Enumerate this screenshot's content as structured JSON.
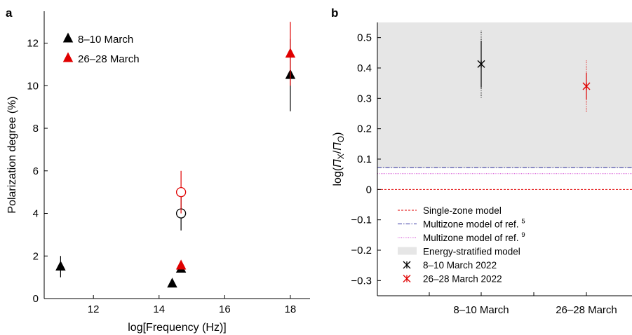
{
  "chart_data": [
    {
      "panel": "a",
      "type": "scatter",
      "xlabel": "log[Frequency (Hz)]",
      "ylabel": "Polarization degree (%)",
      "xlim": [
        10.5,
        18.6
      ],
      "ylim": [
        0,
        13.5
      ],
      "xticks": [
        12,
        14,
        16,
        18
      ],
      "yticks": [
        0,
        2,
        4,
        6,
        8,
        10,
        12
      ],
      "legend_position": "top-left",
      "series": [
        {
          "name": "8–10 March",
          "color": "#000000",
          "marker": "triangle",
          "points": [
            {
              "x": 11.0,
              "y": 1.5,
              "err": 0.5
            },
            {
              "x": 14.4,
              "y": 0.7,
              "err": 0
            },
            {
              "x": 14.67,
              "y": 1.4,
              "err": 0
            },
            {
              "x": 18.0,
              "y": 10.5,
              "err": 1.7
            }
          ]
        },
        {
          "name": "26–28 March",
          "color": "#e00000",
          "marker": "triangle",
          "points": [
            {
              "x": 14.67,
              "y": 1.55,
              "err": 0
            },
            {
              "x": 18.0,
              "y": 11.5,
              "err": 1.5
            }
          ]
        },
        {
          "name": "",
          "color": "#000000",
          "marker": "open-circle",
          "points": [
            {
              "x": 14.67,
              "y": 4.0,
              "err": 0.8
            }
          ]
        },
        {
          "name": "",
          "color": "#e00000",
          "marker": "open-circle",
          "points": [
            {
              "x": 14.67,
              "y": 5.0,
              "err": 1.0
            }
          ]
        }
      ]
    },
    {
      "panel": "b",
      "type": "scatter",
      "ylabel": "log(Π_X/Π_O)",
      "categories": [
        "8–10 March",
        "26–28 March"
      ],
      "ylim": [
        -0.35,
        0.55
      ],
      "yticks": [
        -0.3,
        -0.2,
        -0.1,
        0,
        0.1,
        0.2,
        0.3,
        0.4,
        0.5
      ],
      "ytick_labels": [
        "−0.3",
        "−0.2",
        "−0.1",
        "0",
        "0.1",
        "0.2",
        "0.3",
        "0.4",
        "0.5"
      ],
      "legend_position": "bottom-left",
      "band": {
        "name": "Energy-stratified model",
        "y_from": 0.07,
        "y_to": 0.55,
        "color": "#e6e6e6"
      },
      "lines": [
        {
          "name": "Single-zone model",
          "y": 0.0,
          "color": "#e00000",
          "style": "dashed"
        },
        {
          "name": "Multizone model of ref. ",
          "ref": "5",
          "y": 0.072,
          "color": "#3030a0",
          "style": "dashdot"
        },
        {
          "name": "Multizone model of ref. ",
          "ref": "9",
          "y": 0.052,
          "color": "#d040d0",
          "style": "dotted"
        }
      ],
      "points": [
        {
          "name": "8–10 March 2022",
          "category": "8–10 March",
          "y": 0.413,
          "err_solid": [
            0.335,
            0.49
          ],
          "err_dotted": [
            0.302,
            0.523
          ],
          "color": "#000000"
        },
        {
          "name": "26–28 March 2022",
          "category": "26–28 March",
          "y": 0.34,
          "err_solid": [
            0.295,
            0.385
          ],
          "err_dotted": [
            0.255,
            0.425
          ],
          "color": "#e00000"
        }
      ]
    }
  ],
  "labels": {
    "panel_a": "a",
    "panel_b": "b"
  }
}
